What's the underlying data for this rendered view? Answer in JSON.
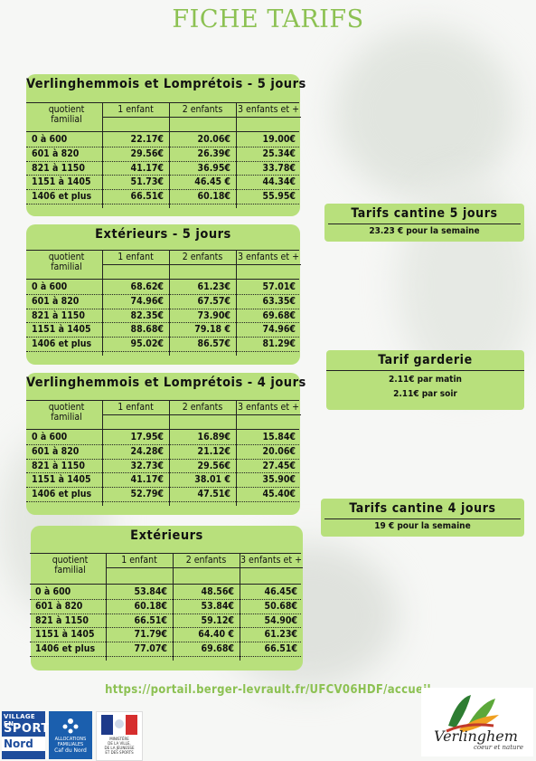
{
  "page_title": "FICHE TARIFS",
  "tables": [
    {
      "title": "Verlinghemmois et Lomprétois - 5 jours",
      "header": {
        "qf": "quotient\nfamilial",
        "c1": "1 enfant",
        "c2": "2 enfants",
        "c3": "3 enfants et +"
      },
      "rows": [
        {
          "label": "0 à 600",
          "v1": "22.17€",
          "v2": "20.06€",
          "v3": "19.00€"
        },
        {
          "label": "601 à 820",
          "v1": "29.56€",
          "v2": "26.39€",
          "v3": "25.34€"
        },
        {
          "label": "821 à 1150",
          "v1": "41.17€",
          "v2": "36.95€",
          "v3": "33.78€"
        },
        {
          "label": "1151 à 1405",
          "v1": "51.73€",
          "v2": "46.45 €",
          "v3": "44.34€"
        },
        {
          "label": "1406 et plus",
          "v1": "66.51€",
          "v2": "60.18€",
          "v3": "55.95€"
        }
      ]
    },
    {
      "title": "Extérieurs - 5 jours",
      "header": {
        "qf": "quotient\nfamilial",
        "c1": "1 enfant",
        "c2": "2 enfants",
        "c3": "3 enfants et +"
      },
      "rows": [
        {
          "label": "0 à 600",
          "v1": "68.62€",
          "v2": "61.23€",
          "v3": "57.01€"
        },
        {
          "label": "601 à 820",
          "v1": "74.96€",
          "v2": "67.57€",
          "v3": "63.35€"
        },
        {
          "label": "821 à 1150",
          "v1": "82.35€",
          "v2": "73.90€",
          "v3": "69.68€"
        },
        {
          "label": "1151 à 1405",
          "v1": "88.68€",
          "v2": "79.18 €",
          "v3": "74.96€"
        },
        {
          "label": "1406 et plus",
          "v1": "95.02€",
          "v2": "86.57€",
          "v3": "81.29€"
        }
      ]
    },
    {
      "title": "Verlinghemmois et Lomprétois - 4 jours",
      "header": {
        "qf": "quotient\nfamilial",
        "c1": "1 enfant",
        "c2": "2 enfants",
        "c3": "3 enfants et +"
      },
      "rows": [
        {
          "label": "0 à 600",
          "v1": "17.95€",
          "v2": "16.89€",
          "v3": "15.84€"
        },
        {
          "label": "601 à 820",
          "v1": "24.28€",
          "v2": "21.12€",
          "v3": "20.06€"
        },
        {
          "label": "821 à 1150",
          "v1": "32.73€",
          "v2": "29.56€",
          "v3": "27.45€"
        },
        {
          "label": "1151 à 1405",
          "v1": "41.17€",
          "v2": "38.01 €",
          "v3": "35.90€"
        },
        {
          "label": "1406 et plus",
          "v1": "52.79€",
          "v2": "47.51€",
          "v3": "45.40€"
        }
      ]
    },
    {
      "title": "Extérieurs",
      "header": {
        "qf": "quotient\nfamilial",
        "c1": "1 enfant",
        "c2": "2 enfants",
        "c3": "3 enfants et +"
      },
      "rows": [
        {
          "label": "0 à 600",
          "v1": "53.84€",
          "v2": "48.56€",
          "v3": "46.45€"
        },
        {
          "label": "601 à 820",
          "v1": "60.18€",
          "v2": "53.84€",
          "v3": "50.68€"
        },
        {
          "label": "821 à 1150",
          "v1": "66.51€",
          "v2": "59.12€",
          "v3": "54.90€"
        },
        {
          "label": "1151 à 1405",
          "v1": "71.79€",
          "v2": "64.40 €",
          "v3": "61.23€"
        },
        {
          "label": "1406 et plus",
          "v1": "77.07€",
          "v2": "69.68€",
          "v3": "66.51€"
        }
      ]
    }
  ],
  "info_boxes": [
    {
      "title": "Tarifs cantine 5 jours",
      "lines": [
        "23.23 € pour la semaine"
      ]
    },
    {
      "title": "Tarif garderie",
      "lines": [
        "2.11€  par matin",
        "2.11€ par soir"
      ]
    },
    {
      "title": "Tarifs cantine 4 jours",
      "lines": [
        "19 € pour la semaine"
      ]
    }
  ],
  "url": "https://portail.berger-levrault.fr/UFCV06HDF/accueil",
  "logos": {
    "village_sport": {
      "line1": "VILLAGE EN",
      "line2": "SPORT",
      "line3": "Nord"
    },
    "caf": {
      "line1": "ALLOCATIONS\nFAMILIALES",
      "line2": "Caf",
      "line3": "du Nord"
    },
    "republique": {
      "line1": "MINISTÈRE\nDE LA VILLE,\nDE LA JEUNESSE\nET DES SPORTS"
    },
    "verlinghem": {
      "name": "Verlinghem",
      "tagline": "coeur et nature"
    }
  },
  "colors": {
    "accent_green": "#8cc152",
    "card_green": "#b8e07c"
  }
}
